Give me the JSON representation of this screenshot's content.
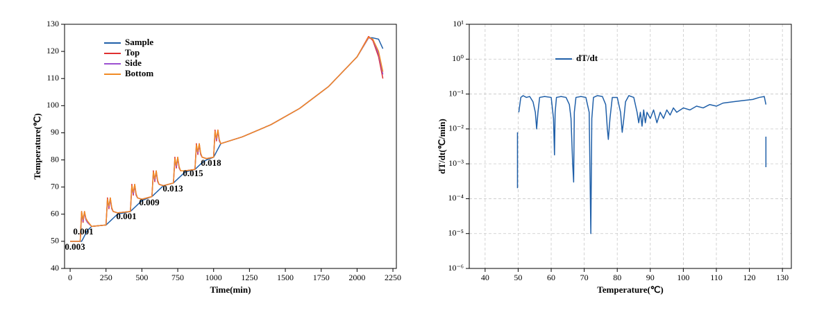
{
  "chart_data": [
    {
      "type": "line",
      "xlabel": "Time(min)",
      "ylabel": "Temperature(℃)",
      "xlim": [
        -39,
        2274
      ],
      "ylim": [
        40,
        130
      ],
      "xticks": [
        0,
        250,
        500,
        750,
        1000,
        1250,
        1500,
        1750,
        2000,
        2250
      ],
      "yticks": [
        40,
        50,
        60,
        70,
        80,
        90,
        100,
        110,
        120,
        130
      ],
      "grid": false,
      "legend": "upper left",
      "x": [
        0,
        70,
        80,
        90,
        100,
        110,
        120,
        150,
        250,
        260,
        270,
        280,
        290,
        300,
        330,
        420,
        430,
        440,
        450,
        460,
        470,
        500,
        570,
        580,
        590,
        600,
        610,
        620,
        650,
        720,
        730,
        740,
        750,
        760,
        770,
        800,
        870,
        880,
        890,
        900,
        910,
        920,
        950,
        1000,
        1010,
        1020,
        1030,
        1040,
        1050,
        1200,
        1400,
        1600,
        1800,
        2000,
        2080,
        2110,
        2150,
        2180
      ],
      "series": [
        {
          "name": "Sample",
          "color": "#1f5fa8",
          "values": [
            50,
            50,
            50,
            51,
            52,
            53,
            54,
            55.5,
            56,
            56.5,
            57,
            57.5,
            58,
            58.5,
            60,
            61,
            61.5,
            62,
            62.5,
            63,
            63.5,
            65,
            66.5,
            67,
            67.5,
            68,
            68.5,
            69,
            70.5,
            71.5,
            72,
            72.5,
            73,
            73.5,
            74,
            75.5,
            76.5,
            77,
            77.5,
            78,
            78.5,
            79,
            80,
            81,
            82,
            83,
            84,
            85,
            86,
            88.5,
            93,
            99,
            107,
            118,
            125,
            125,
            124.5,
            121
          ]
        },
        {
          "name": "Top",
          "color": "#e03030",
          "values": [
            50,
            50,
            61,
            57,
            61,
            58,
            57,
            55.5,
            56,
            66,
            62,
            66,
            62,
            61,
            60.5,
            61,
            71,
            67,
            71,
            67,
            66,
            65.5,
            66.5,
            76,
            72,
            76,
            72,
            71,
            70.5,
            71.5,
            81,
            77,
            81,
            77,
            76,
            76,
            76.5,
            86,
            82,
            86,
            82,
            81,
            80.5,
            81,
            91,
            87,
            91,
            87,
            86,
            88.5,
            93,
            99,
            107,
            118,
            125.5,
            124,
            118,
            110
          ]
        },
        {
          "name": "Side",
          "color": "#9b4fd0",
          "values": [
            50,
            50,
            60,
            57.5,
            60.5,
            58,
            57,
            55.5,
            56,
            65,
            62.5,
            65.5,
            62,
            61,
            60.5,
            61,
            70,
            67.5,
            70.5,
            67,
            66,
            65.5,
            66.5,
            75,
            72.5,
            75.5,
            72,
            71,
            70.5,
            71.5,
            80,
            77.5,
            80.5,
            77,
            76,
            76,
            76.5,
            85,
            82.5,
            85.5,
            82,
            81,
            80.5,
            81,
            90,
            87.5,
            90.5,
            87,
            86,
            88.5,
            93,
            99,
            107,
            118,
            125,
            124.5,
            119,
            111.5
          ]
        },
        {
          "name": "Bottom",
          "color": "#f08a24",
          "values": [
            50,
            50,
            61,
            58,
            61,
            58.5,
            57.5,
            55.5,
            56,
            65.5,
            63,
            66,
            62.5,
            61,
            60.5,
            61,
            70.5,
            68,
            71,
            67.5,
            66,
            65.5,
            66.5,
            75.5,
            73,
            76,
            72.5,
            71,
            70.5,
            71.5,
            80.5,
            78,
            81,
            77.5,
            76,
            76,
            76.5,
            85.5,
            83,
            86,
            82.5,
            81,
            80.5,
            81,
            90.5,
            88,
            91,
            87.5,
            86,
            88.5,
            93,
            99,
            107,
            118,
            125.2,
            124.5,
            120,
            112.5
          ]
        }
      ],
      "annotations": [
        "0.003",
        "0.001",
        "0.001",
        "0.009",
        "0.013",
        "0.015",
        "0.018"
      ]
    },
    {
      "type": "line",
      "xlabel": "Temperature(℃)",
      "ylabel": "dT/dt(℃/min)",
      "xlim": [
        35.2,
        132.7
      ],
      "ylim": [
        1e-06,
        10
      ],
      "log_y": true,
      "xticks": [
        40,
        50,
        60,
        70,
        80,
        90,
        100,
        110,
        120,
        130
      ],
      "yticks": [
        {
          "value": 1e-06,
          "label": "10⁻⁶"
        },
        {
          "value": 1e-05,
          "label": "10⁻⁵"
        },
        {
          "value": 0.0001,
          "label": "10⁻⁴"
        },
        {
          "value": 0.001,
          "label": "10⁻³"
        },
        {
          "value": 0.01,
          "label": "10⁻²"
        },
        {
          "value": 0.1,
          "label": "10⁻¹"
        },
        {
          "value": 1,
          "label": "10⁰"
        },
        {
          "value": 10,
          "label": "10¹"
        }
      ],
      "grid": true,
      "legend": "upper left",
      "x": [
        49.8,
        49.8,
        null,
        50.2,
        50.8,
        51.5,
        52.5,
        53.5,
        54.5,
        55.2,
        55.6,
        56,
        56.5,
        58,
        60,
        60.7,
        61,
        61.2,
        61.6,
        63,
        64.5,
        65.5,
        66,
        66.5,
        66.8,
        67,
        67.5,
        69,
        70.5,
        71.5,
        72,
        72.3,
        72.8,
        74,
        75.5,
        76.5,
        77,
        77.3,
        77.8,
        78.5,
        80,
        81,
        81.5,
        82,
        82.5,
        83.5,
        85,
        86,
        86.5,
        87,
        87.5,
        88,
        88.5,
        89,
        90,
        91,
        92,
        93,
        94,
        95,
        96,
        97,
        98,
        100,
        102,
        104,
        106,
        108,
        110,
        112,
        115,
        118,
        121,
        123,
        124.5,
        125,
        null,
        125,
        125
      ],
      "series": [
        {
          "name": "dT/dt",
          "color": "#1f5fa8",
          "values": [
            0.0002,
            0.008,
            null,
            0.03,
            0.08,
            0.09,
            0.08,
            0.085,
            0.06,
            0.03,
            0.01,
            0.03,
            0.08,
            0.085,
            0.08,
            0.02,
            0.0018,
            0.03,
            0.08,
            0.085,
            0.08,
            0.05,
            0.02,
            0.001,
            0.0003,
            0.03,
            0.08,
            0.085,
            0.08,
            0.03,
            1e-05,
            0.02,
            0.08,
            0.09,
            0.085,
            0.05,
            0.01,
            0.005,
            0.02,
            0.08,
            0.08,
            0.03,
            0.008,
            0.02,
            0.06,
            0.09,
            0.08,
            0.03,
            0.015,
            0.03,
            0.012,
            0.035,
            0.015,
            0.03,
            0.02,
            0.035,
            0.015,
            0.03,
            0.02,
            0.035,
            0.025,
            0.04,
            0.03,
            0.04,
            0.035,
            0.045,
            0.04,
            0.05,
            0.045,
            0.055,
            0.06,
            0.065,
            0.07,
            0.08,
            0.085,
            0.05,
            null,
            0.0008,
            0.006
          ]
        }
      ]
    }
  ]
}
